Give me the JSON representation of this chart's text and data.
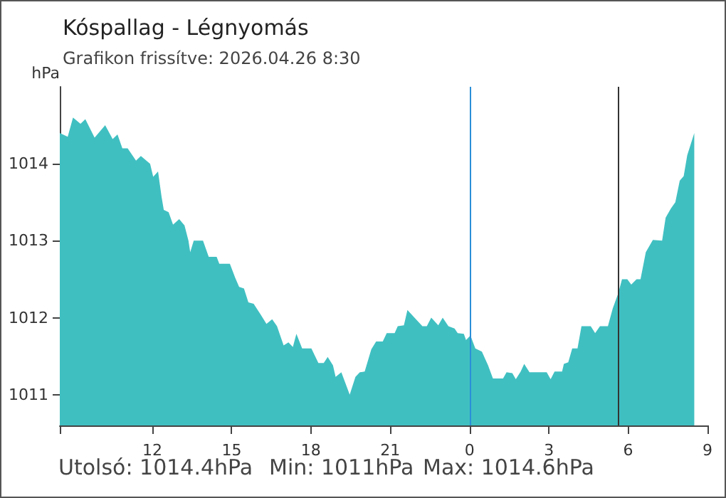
{
  "chart_data": {
    "type": "area",
    "title": "Kóspallag - Légnyomás",
    "subtitle": "Grafikon frissítve: 2026.04.26 8:30",
    "ylabel": "hPa",
    "annotations": [
      "Utolsó: 1014.4hPa",
      "Min: 1011hPa",
      "Max: 1014.6hPa"
    ],
    "color": "#40bfc1",
    "x": [
      "2026-04-25T08:30",
      "2026-04-25T08:48",
      "2026-04-25T09:00",
      "2026-04-25T09:17",
      "2026-04-25T09:28",
      "2026-04-25T09:49",
      "2026-04-25T10:13",
      "2026-04-25T10:30",
      "2026-04-25T10:41",
      "2026-04-25T10:52",
      "2026-04-25T11:04",
      "2026-04-25T11:23",
      "2026-04-25T11:34",
      "2026-04-25T11:55",
      "2026-04-25T12:02",
      "2026-04-25T12:13",
      "2026-04-25T12:21",
      "2026-04-25T12:26",
      "2026-04-25T12:37",
      "2026-04-25T12:47",
      "2026-04-25T13:01",
      "2026-04-25T13:13",
      "2026-04-25T13:22",
      "2026-04-25T13:26",
      "2026-04-25T13:34",
      "2026-04-25T13:55",
      "2026-04-25T14:08",
      "2026-04-25T14:26",
      "2026-04-25T14:32",
      "2026-04-25T14:56",
      "2026-04-25T15:08",
      "2026-04-25T15:17",
      "2026-04-25T15:28",
      "2026-04-25T15:38",
      "2026-04-25T15:50",
      "2026-04-25T16:06",
      "2026-04-25T16:19",
      "2026-04-25T16:32",
      "2026-04-25T16:43",
      "2026-04-25T16:58",
      "2026-04-25T17:09",
      "2026-04-25T17:19",
      "2026-04-25T17:27",
      "2026-04-25T17:40",
      "2026-04-25T18:01",
      "2026-04-25T18:17",
      "2026-04-25T18:29",
      "2026-04-25T18:38",
      "2026-04-25T18:50",
      "2026-04-25T18:56",
      "2026-04-25T19:09",
      "2026-04-25T19:28",
      "2026-04-25T19:41",
      "2026-04-25T19:51",
      "2026-04-25T20:02",
      "2026-04-25T20:17",
      "2026-04-25T20:28",
      "2026-04-25T20:43",
      "2026-04-25T20:52",
      "2026-04-25T21:10",
      "2026-04-25T21:17",
      "2026-04-25T21:31",
      "2026-04-25T21:39",
      "2026-04-25T21:52",
      "2026-04-25T22:13",
      "2026-04-25T22:23",
      "2026-04-25T22:33",
      "2026-04-25T22:49",
      "2026-04-25T22:59",
      "2026-04-25T23:12",
      "2026-04-25T23:26",
      "2026-04-25T23:33",
      "2026-04-25T23:47",
      "2026-04-25T23:52",
      "2026-04-26T00:02",
      "2026-04-26T00:13",
      "2026-04-26T00:28",
      "2026-04-26T00:42",
      "2026-04-26T00:53",
      "2026-04-26T01:16",
      "2026-04-26T01:24",
      "2026-04-26T01:37",
      "2026-04-26T01:45",
      "2026-04-26T01:56",
      "2026-04-26T02:04",
      "2026-04-26T02:16",
      "2026-04-26T02:55",
      "2026-04-26T03:04",
      "2026-04-26T03:13",
      "2026-04-26T03:30",
      "2026-04-26T03:34",
      "2026-04-26T03:44",
      "2026-04-26T03:53",
      "2026-04-26T04:05",
      "2026-04-26T04:14",
      "2026-04-26T04:35",
      "2026-04-26T04:45",
      "2026-04-26T04:56",
      "2026-04-26T05:14",
      "2026-04-26T05:25",
      "2026-04-26T05:37",
      "2026-04-26T05:46",
      "2026-04-26T05:58",
      "2026-04-26T06:07",
      "2026-04-26T06:19",
      "2026-04-26T06:28",
      "2026-04-26T06:40",
      "2026-04-26T06:56",
      "2026-04-26T07:17",
      "2026-04-26T07:25",
      "2026-04-26T07:37",
      "2026-04-26T07:47",
      "2026-04-26T07:57",
      "2026-04-26T08:06",
      "2026-04-26T08:14",
      "2026-04-26T08:30"
    ],
    "values": [
      1014.4,
      1014.35,
      1014.6,
      1014.52,
      1014.58,
      1014.34,
      1014.5,
      1014.32,
      1014.38,
      1014.2,
      1014.2,
      1014.04,
      1014.1,
      1014.0,
      1013.83,
      1013.9,
      1013.57,
      1013.4,
      1013.37,
      1013.21,
      1013.28,
      1013.2,
      1013.0,
      1012.85,
      1013.0,
      1013.0,
      1012.79,
      1012.79,
      1012.7,
      1012.7,
      1012.52,
      1012.4,
      1012.38,
      1012.2,
      1012.18,
      1012.04,
      1011.92,
      1011.98,
      1011.89,
      1011.64,
      1011.68,
      1011.62,
      1011.79,
      1011.6,
      1011.6,
      1011.41,
      1011.41,
      1011.49,
      1011.38,
      1011.23,
      1011.29,
      1011.0,
      1011.23,
      1011.29,
      1011.3,
      1011.59,
      1011.69,
      1011.69,
      1011.8,
      1011.8,
      1011.89,
      1011.9,
      1012.1,
      1012.02,
      1011.89,
      1011.89,
      1012.0,
      1011.9,
      1012.0,
      1011.89,
      1011.86,
      1011.8,
      1011.79,
      1011.71,
      1011.77,
      1011.6,
      1011.56,
      1011.38,
      1011.21,
      1011.21,
      1011.29,
      1011.28,
      1011.2,
      1011.3,
      1011.4,
      1011.29,
      1011.29,
      1011.2,
      1011.3,
      1011.3,
      1011.4,
      1011.42,
      1011.6,
      1011.6,
      1011.89,
      1011.89,
      1011.8,
      1011.89,
      1011.89,
      1012.12,
      1012.31,
      1012.5,
      1012.5,
      1012.43,
      1012.5,
      1012.5,
      1012.85,
      1013.01,
      1013.0,
      1013.3,
      1013.42,
      1013.5,
      1013.78,
      1013.84,
      1014.11,
      1014.4
    ],
    "xlim": [
      "2026-04-25T08:30",
      "2026-04-26T09:00"
    ],
    "ylim": [
      1010.6,
      1015
    ],
    "xticks": [
      {
        "value": "2026-04-25T08:30",
        "label": null
      },
      {
        "value": "2026-04-25T12:00",
        "label": "12"
      },
      {
        "value": "2026-04-25T15:00",
        "label": "15"
      },
      {
        "value": "2026-04-25T18:00",
        "label": "18"
      },
      {
        "value": "2026-04-25T21:00",
        "label": "21"
      },
      {
        "value": "2026-04-26T00:00",
        "label": "0"
      },
      {
        "value": "2026-04-26T03:00",
        "label": "3"
      },
      {
        "value": "2026-04-26T06:00",
        "label": "6"
      },
      {
        "value": "2026-04-26T09:00",
        "label": "9"
      }
    ],
    "yticks": [
      1011,
      1012,
      1013,
      1014
    ],
    "ref_lines": [
      {
        "axis": "x",
        "value": "2026-04-26T00:00",
        "color": "#2a8fd8"
      },
      {
        "axis": "x",
        "value": "2026-04-26T05:36",
        "color": "#333333"
      }
    ]
  }
}
